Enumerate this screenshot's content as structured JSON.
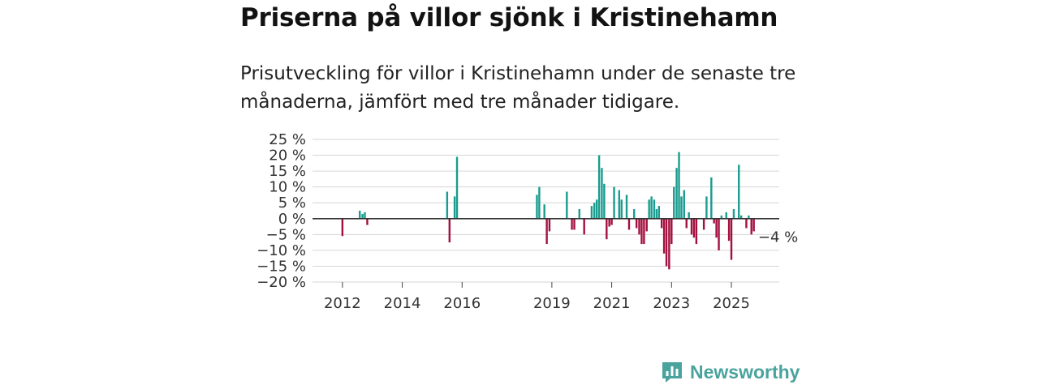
{
  "title": "Priserna på villor sjönk i Kristinehamn",
  "subtitle": "Prisutveckling för villor i Kristinehamn under de senaste tre månaderna, jämfört med tre månader tidigare.",
  "brand": {
    "name": "Newsworthy"
  },
  "colors": {
    "positive": "#1a9c8f",
    "negative": "#a3103f",
    "grid": "#d6d6d6",
    "zero": "#333333",
    "brand": "#4aa39d"
  },
  "chart_data": {
    "type": "bar",
    "title": "Priserna på villor sjönk i Kristinehamn",
    "xlabel": "",
    "ylabel": "",
    "unit": "%",
    "ylim": [
      -20,
      25
    ],
    "yticks": [
      25,
      20,
      15,
      10,
      5,
      0,
      -5,
      -10,
      -15,
      -20
    ],
    "ytick_labels": [
      "25 %",
      "20 %",
      "15 %",
      "10 %",
      "5 %",
      "0 %",
      "−5 %",
      "−10 %",
      "−15 %",
      "−20 %"
    ],
    "xlim": [
      2011.0,
      2026.6
    ],
    "xticks": [
      2012,
      2014,
      2016,
      2019,
      2021,
      2023,
      2025
    ],
    "xtick_labels": [
      "2012",
      "2014",
      "2016",
      "2019",
      "2021",
      "2023",
      "2025"
    ],
    "annotation": {
      "label": "−4 %",
      "x": 2025.92,
      "value": -4
    },
    "points": [
      {
        "x": 2012.0,
        "v": -5.5
      },
      {
        "x": 2012.58,
        "v": 2.5
      },
      {
        "x": 2012.67,
        "v": 1.5
      },
      {
        "x": 2012.75,
        "v": 2.0
      },
      {
        "x": 2012.83,
        "v": -2.0
      },
      {
        "x": 2015.5,
        "v": 8.5
      },
      {
        "x": 2015.58,
        "v": -7.5
      },
      {
        "x": 2015.75,
        "v": 7.0
      },
      {
        "x": 2015.83,
        "v": 19.5
      },
      {
        "x": 2018.5,
        "v": 7.5
      },
      {
        "x": 2018.58,
        "v": 10.0
      },
      {
        "x": 2018.75,
        "v": 4.5
      },
      {
        "x": 2018.83,
        "v": -8.0
      },
      {
        "x": 2018.92,
        "v": -4.0
      },
      {
        "x": 2019.5,
        "v": 8.5
      },
      {
        "x": 2019.67,
        "v": -3.5
      },
      {
        "x": 2019.75,
        "v": -3.5
      },
      {
        "x": 2019.92,
        "v": 3.0
      },
      {
        "x": 2020.08,
        "v": -5.0
      },
      {
        "x": 2020.33,
        "v": 4.0
      },
      {
        "x": 2020.42,
        "v": 5.0
      },
      {
        "x": 2020.5,
        "v": 6.0
      },
      {
        "x": 2020.58,
        "v": 20.0
      },
      {
        "x": 2020.67,
        "v": 16.0
      },
      {
        "x": 2020.75,
        "v": 11.0
      },
      {
        "x": 2020.83,
        "v": -6.5
      },
      {
        "x": 2020.92,
        "v": -2.5
      },
      {
        "x": 2021.0,
        "v": -2.0
      },
      {
        "x": 2021.08,
        "v": 10.0
      },
      {
        "x": 2021.25,
        "v": 9.0
      },
      {
        "x": 2021.33,
        "v": 6.0
      },
      {
        "x": 2021.5,
        "v": 7.5
      },
      {
        "x": 2021.58,
        "v": -3.5
      },
      {
        "x": 2021.75,
        "v": 3.0
      },
      {
        "x": 2021.83,
        "v": -3.0
      },
      {
        "x": 2021.92,
        "v": -5.0
      },
      {
        "x": 2022.0,
        "v": -8.0
      },
      {
        "x": 2022.08,
        "v": -8.0
      },
      {
        "x": 2022.17,
        "v": -4.0
      },
      {
        "x": 2022.25,
        "v": 6.0
      },
      {
        "x": 2022.33,
        "v": 7.0
      },
      {
        "x": 2022.42,
        "v": 6.0
      },
      {
        "x": 2022.5,
        "v": 3.0
      },
      {
        "x": 2022.58,
        "v": 4.0
      },
      {
        "x": 2022.67,
        "v": -3.0
      },
      {
        "x": 2022.75,
        "v": -11.0
      },
      {
        "x": 2022.83,
        "v": -15.0
      },
      {
        "x": 2022.92,
        "v": -16.0
      },
      {
        "x": 2023.0,
        "v": -8.0
      },
      {
        "x": 2023.08,
        "v": 10.0
      },
      {
        "x": 2023.17,
        "v": 16.0
      },
      {
        "x": 2023.25,
        "v": 21.0
      },
      {
        "x": 2023.33,
        "v": 7.0
      },
      {
        "x": 2023.42,
        "v": 9.0
      },
      {
        "x": 2023.5,
        "v": -3.0
      },
      {
        "x": 2023.58,
        "v": 2.0
      },
      {
        "x": 2023.67,
        "v": -5.0
      },
      {
        "x": 2023.75,
        "v": -6.0
      },
      {
        "x": 2023.83,
        "v": -8.0
      },
      {
        "x": 2024.08,
        "v": -3.5
      },
      {
        "x": 2024.17,
        "v": 7.0
      },
      {
        "x": 2024.33,
        "v": 13.0
      },
      {
        "x": 2024.42,
        "v": -1.5
      },
      {
        "x": 2024.5,
        "v": -6.0
      },
      {
        "x": 2024.58,
        "v": -10.0
      },
      {
        "x": 2024.67,
        "v": 1.0
      },
      {
        "x": 2024.83,
        "v": 2.0
      },
      {
        "x": 2024.92,
        "v": -7.0
      },
      {
        "x": 2025.0,
        "v": -13.0
      },
      {
        "x": 2025.08,
        "v": 3.0
      },
      {
        "x": 2025.25,
        "v": 17.0
      },
      {
        "x": 2025.33,
        "v": 1.0
      },
      {
        "x": 2025.5,
        "v": -3.0
      },
      {
        "x": 2025.58,
        "v": 1.0
      },
      {
        "x": 2025.67,
        "v": -5.0
      },
      {
        "x": 2025.75,
        "v": -4.0
      }
    ]
  }
}
